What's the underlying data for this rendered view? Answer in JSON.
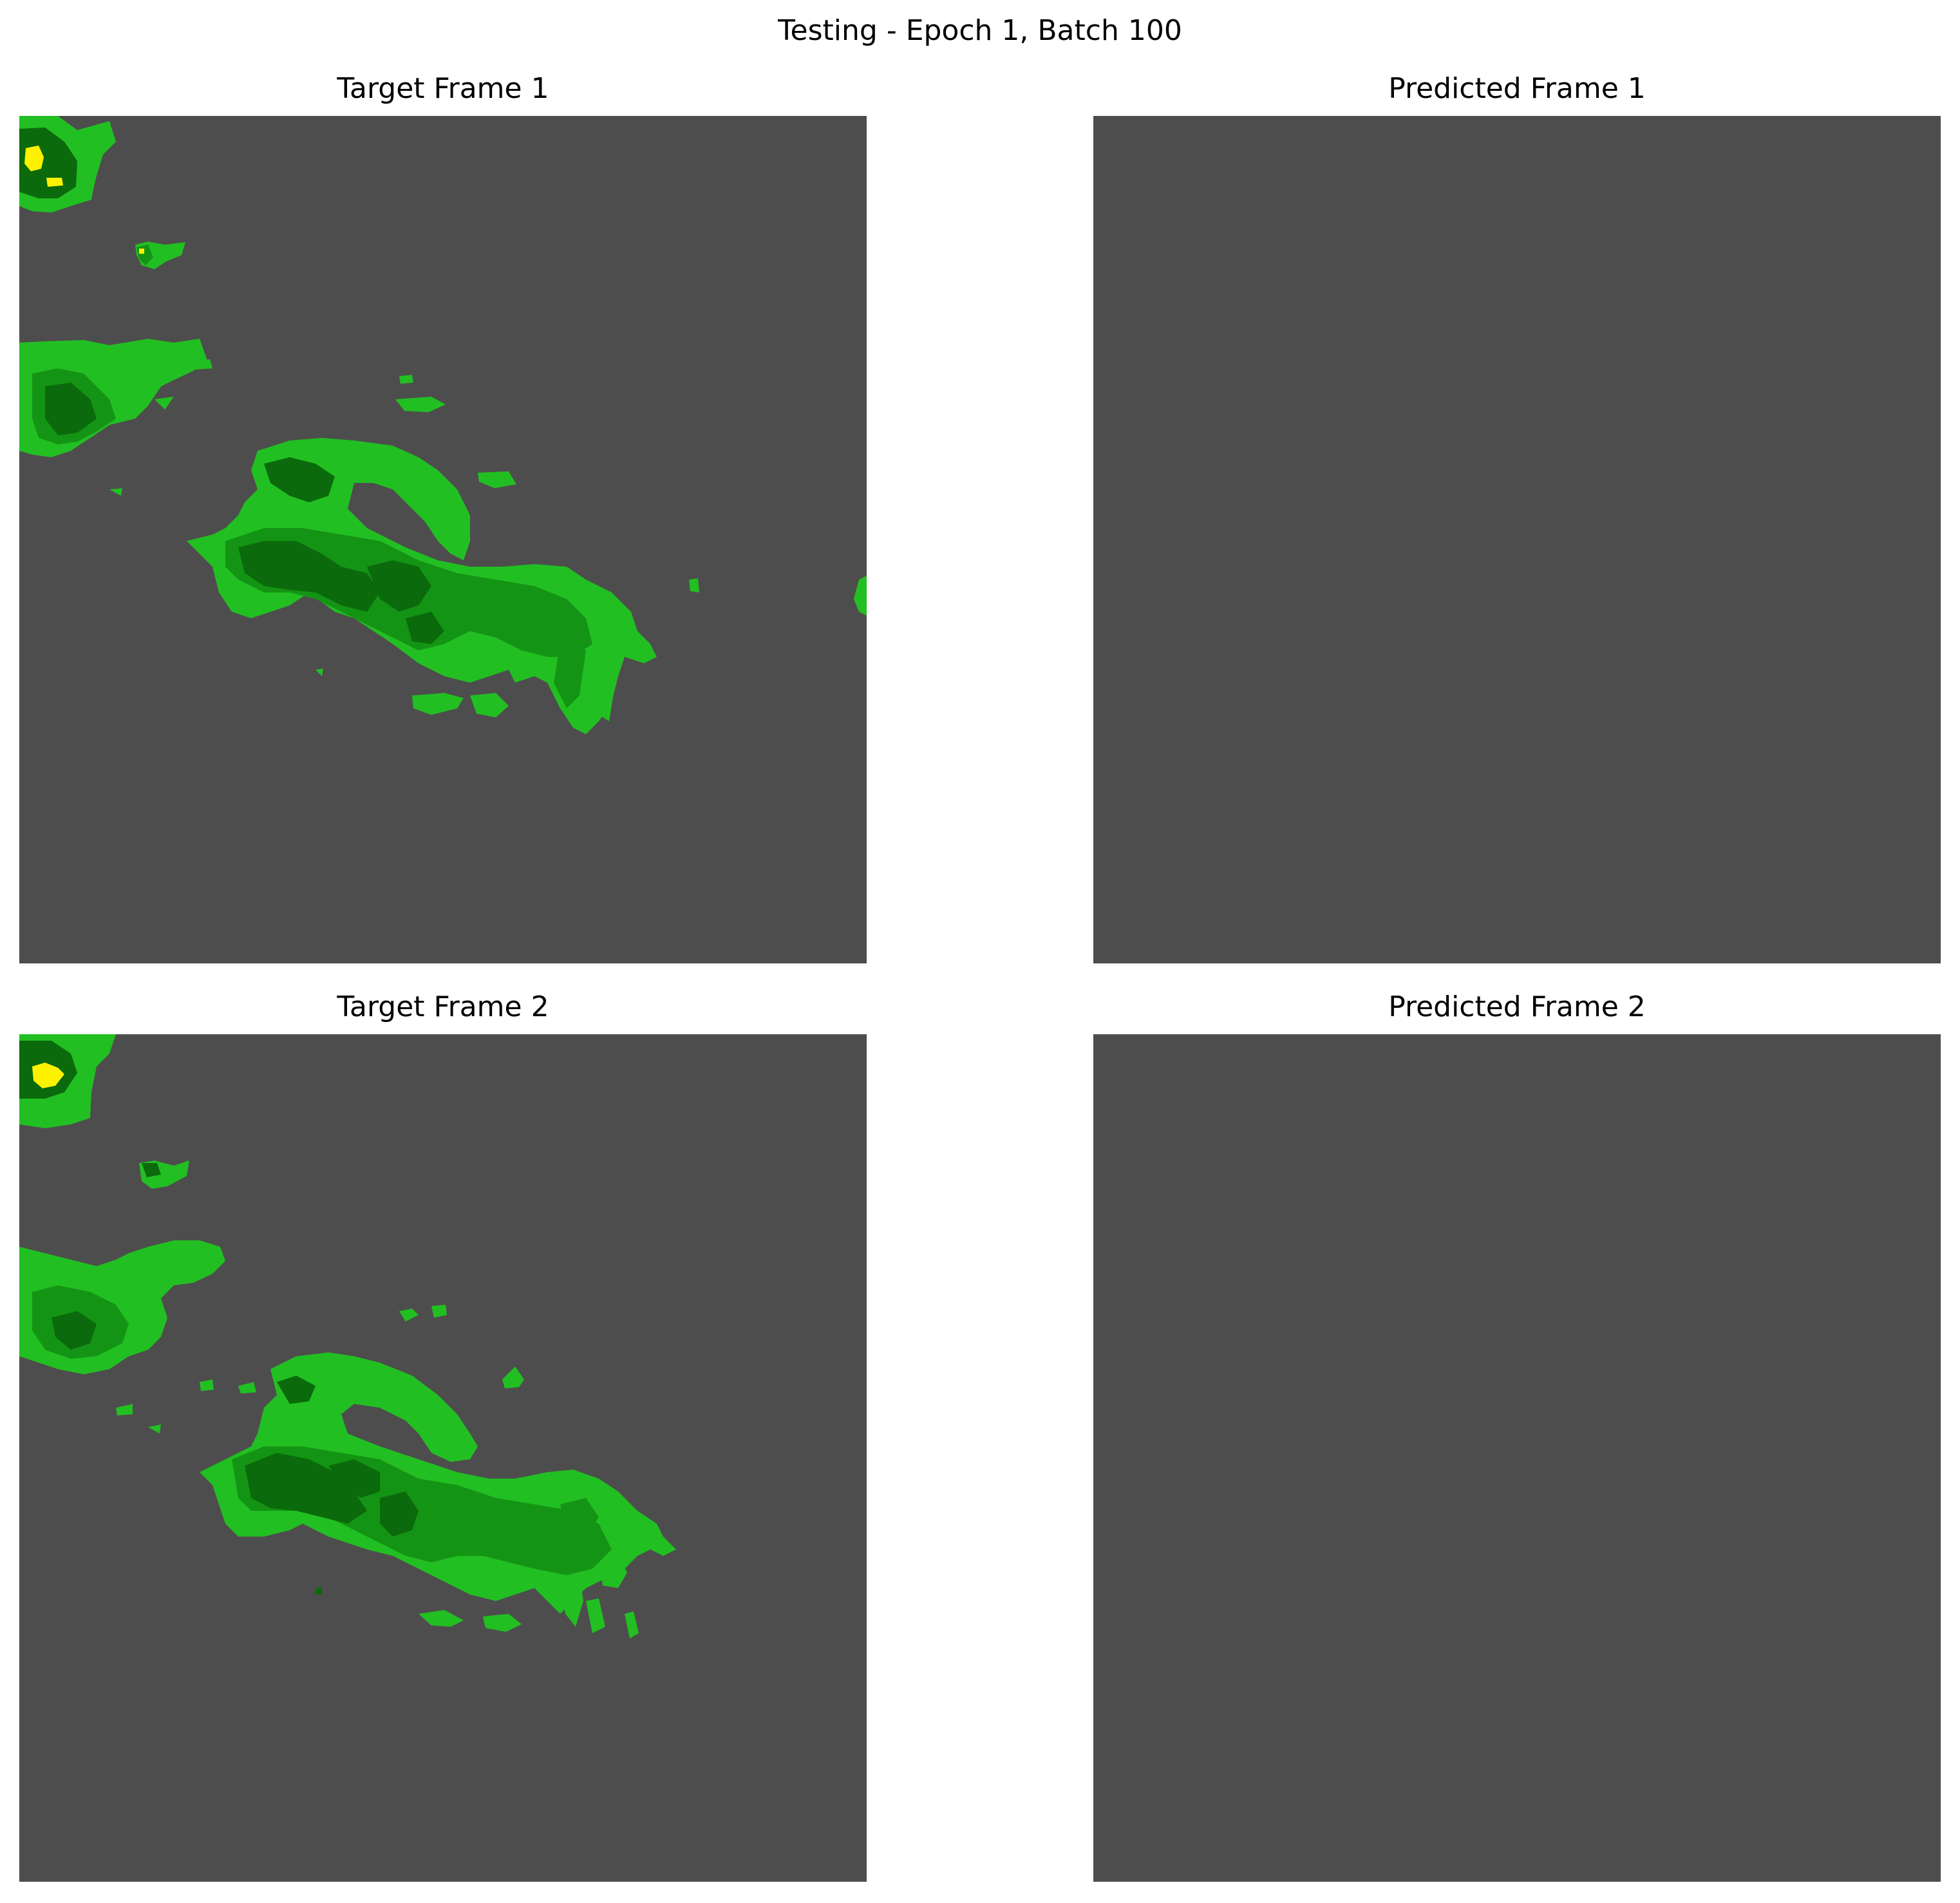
{
  "figure": {
    "title": "Testing - Epoch 1, Batch 100",
    "panels": [
      {
        "id": "target-1",
        "title": "Target Frame 1",
        "has_echo": true
      },
      {
        "id": "predicted-1",
        "title": "Predicted Frame 1",
        "has_echo": false
      },
      {
        "id": "target-2",
        "title": "Target Frame 2",
        "has_echo": true
      },
      {
        "id": "predicted-2",
        "title": "Predicted Frame 2",
        "has_echo": false
      }
    ]
  },
  "colors": {
    "background": "#4d4d4d",
    "light_green": "#22bf22",
    "mid_green": "#149414",
    "dark_green": "#0b6a0b",
    "yellow": "#fff200"
  }
}
